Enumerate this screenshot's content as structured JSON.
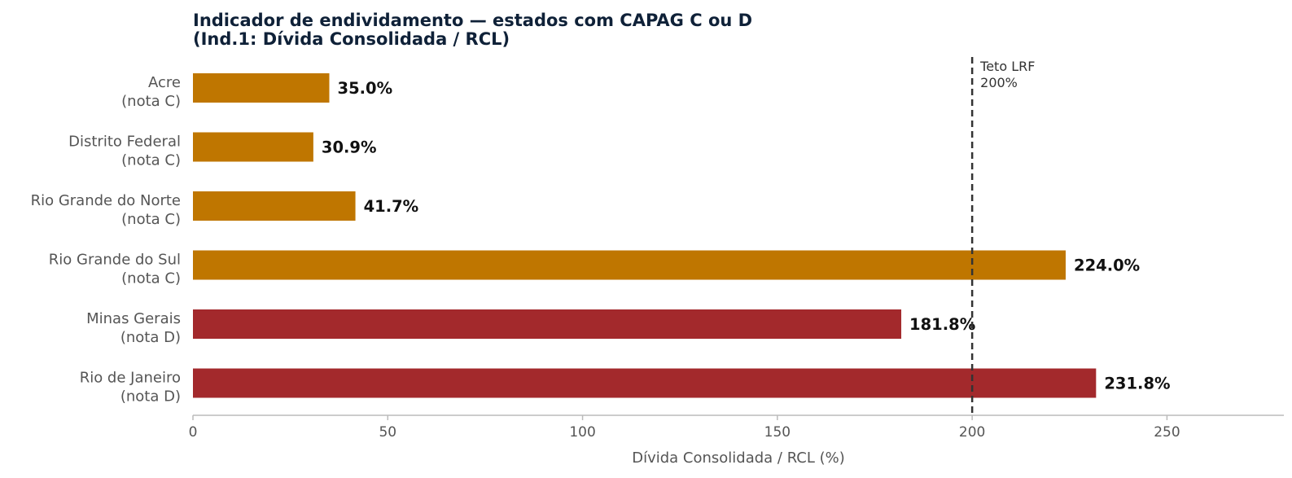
{
  "chart_data": {
    "type": "bar",
    "orientation": "horizontal",
    "title_lines": [
      "Indicador de endividamento — estados com CAPAG C ou D",
      "(Ind.1: Dívida Consolidada / RCL)"
    ],
    "xlabel": "Dívida Consolidada / RCL (%)",
    "ylabel": "",
    "xlim": [
      0,
      280
    ],
    "xticks": [
      0,
      50,
      100,
      150,
      200,
      250
    ],
    "grid": false,
    "bars": [
      {
        "state": "Acre",
        "grade": "(nota C)",
        "value": 35.0,
        "label": "35.0%",
        "color": "#bf7600"
      },
      {
        "state": "Distrito Federal",
        "grade": "(nota C)",
        "value": 30.9,
        "label": "30.9%",
        "color": "#bf7600"
      },
      {
        "state": "Rio Grande do Norte",
        "grade": "(nota C)",
        "value": 41.7,
        "label": "41.7%",
        "color": "#bf7600"
      },
      {
        "state": "Rio Grande do Sul",
        "grade": "(nota C)",
        "value": 224.0,
        "label": "224.0%",
        "color": "#bf7600"
      },
      {
        "state": "Minas Gerais",
        "grade": "(nota D)",
        "value": 181.8,
        "label": "181.8%",
        "color": "#a3292c"
      },
      {
        "state": "Rio de Janeiro",
        "grade": "(nota D)",
        "value": 231.8,
        "label": "231.8%",
        "color": "#a3292c"
      }
    ],
    "reference_line": {
      "value": 200,
      "label_lines": [
        "Teto LRF",
        "200%"
      ],
      "color": "#333333"
    }
  },
  "colors": {
    "title": "#0f2138",
    "category_label": "#555555",
    "tick_label": "#555555",
    "axis": "#bbbbbb",
    "data_label": "#111111"
  }
}
